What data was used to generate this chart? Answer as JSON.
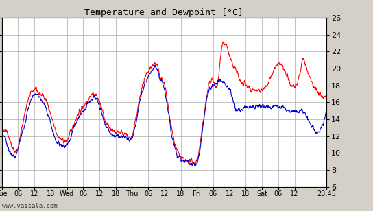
{
  "title": "Temperature and Dewpoint [°C]",
  "ylim": [
    6,
    26
  ],
  "yticks": [
    6,
    8,
    10,
    12,
    14,
    16,
    18,
    20,
    22,
    24,
    26
  ],
  "xlabel_labels": [
    "Tue",
    "06",
    "12",
    "18",
    "Wed",
    "06",
    "12",
    "18",
    "Thu",
    "06",
    "12",
    "18",
    "Fri",
    "06",
    "12",
    "18",
    "Sat",
    "06",
    "12",
    "23:45"
  ],
  "xtick_pos": [
    0,
    6,
    12,
    18,
    24,
    30,
    36,
    42,
    48,
    54,
    60,
    66,
    72,
    78,
    84,
    90,
    96,
    102,
    108,
    119.75
  ],
  "xlim": [
    0,
    119.75
  ],
  "watermark": "www.vaisala.com",
  "bg_color": "#d4d0c8",
  "plot_bg_color": "#ffffff",
  "grid_color": "#aaaaaa",
  "temp_color": "#ff0000",
  "dewpoint_color": "#0000cc",
  "line_width": 0.8,
  "temp_keypoints": [
    [
      0,
      12.0
    ],
    [
      2,
      12.5
    ],
    [
      3,
      11.5
    ],
    [
      4,
      10.5
    ],
    [
      5,
      10.2
    ],
    [
      6,
      10.8
    ],
    [
      8,
      14.0
    ],
    [
      10,
      16.5
    ],
    [
      12,
      17.5
    ],
    [
      14,
      17.0
    ],
    [
      16,
      16.5
    ],
    [
      18,
      14.5
    ],
    [
      20,
      12.5
    ],
    [
      22,
      11.5
    ],
    [
      24,
      11.5
    ],
    [
      26,
      13.0
    ],
    [
      28,
      14.5
    ],
    [
      30,
      15.5
    ],
    [
      32,
      16.5
    ],
    [
      34,
      17.0
    ],
    [
      36,
      16.0
    ],
    [
      38,
      14.0
    ],
    [
      40,
      13.0
    ],
    [
      42,
      12.5
    ],
    [
      44,
      12.5
    ],
    [
      46,
      12.0
    ],
    [
      48,
      12.0
    ],
    [
      50,
      15.0
    ],
    [
      52,
      18.0
    ],
    [
      54,
      19.5
    ],
    [
      56,
      20.5
    ],
    [
      57,
      20.5
    ],
    [
      58,
      19.5
    ],
    [
      60,
      18.0
    ],
    [
      62,
      14.0
    ],
    [
      64,
      11.0
    ],
    [
      66,
      9.5
    ],
    [
      68,
      9.0
    ],
    [
      70,
      9.0
    ],
    [
      71,
      8.8
    ],
    [
      72,
      9.2
    ],
    [
      74,
      13.0
    ],
    [
      76,
      17.5
    ],
    [
      78,
      18.5
    ],
    [
      80,
      19.0
    ],
    [
      81,
      22.5
    ],
    [
      82,
      23.0
    ],
    [
      83,
      22.5
    ],
    [
      84,
      21.5
    ],
    [
      85,
      20.5
    ],
    [
      86,
      20.0
    ],
    [
      88,
      18.5
    ],
    [
      90,
      18.0
    ],
    [
      92,
      17.5
    ],
    [
      94,
      17.5
    ],
    [
      96,
      17.5
    ],
    [
      98,
      18.0
    ],
    [
      100,
      19.5
    ],
    [
      102,
      20.5
    ],
    [
      104,
      20.0
    ],
    [
      106,
      18.5
    ],
    [
      108,
      18.0
    ],
    [
      110,
      19.5
    ],
    [
      111,
      21.0
    ],
    [
      112,
      20.5
    ],
    [
      113,
      19.5
    ],
    [
      115,
      18.0
    ],
    [
      117,
      17.0
    ],
    [
      119.75,
      16.5
    ]
  ],
  "dew_keypoints": [
    [
      0,
      11.5
    ],
    [
      2,
      11.0
    ],
    [
      3,
      10.0
    ],
    [
      4,
      9.8
    ],
    [
      5,
      9.5
    ],
    [
      6,
      10.5
    ],
    [
      8,
      13.0
    ],
    [
      10,
      15.5
    ],
    [
      12,
      17.0
    ],
    [
      14,
      16.5
    ],
    [
      16,
      15.5
    ],
    [
      18,
      13.5
    ],
    [
      20,
      11.5
    ],
    [
      22,
      11.0
    ],
    [
      24,
      11.0
    ],
    [
      26,
      12.5
    ],
    [
      28,
      14.0
    ],
    [
      30,
      15.0
    ],
    [
      32,
      16.0
    ],
    [
      34,
      16.5
    ],
    [
      36,
      15.5
    ],
    [
      38,
      13.5
    ],
    [
      40,
      12.5
    ],
    [
      42,
      12.0
    ],
    [
      44,
      12.0
    ],
    [
      46,
      11.8
    ],
    [
      48,
      11.8
    ],
    [
      50,
      14.5
    ],
    [
      52,
      17.5
    ],
    [
      54,
      19.0
    ],
    [
      56,
      20.0
    ],
    [
      57,
      20.0
    ],
    [
      58,
      19.0
    ],
    [
      60,
      17.5
    ],
    [
      62,
      13.5
    ],
    [
      64,
      10.5
    ],
    [
      66,
      9.2
    ],
    [
      68,
      9.0
    ],
    [
      70,
      8.8
    ],
    [
      71,
      8.6
    ],
    [
      72,
      8.8
    ],
    [
      74,
      12.5
    ],
    [
      76,
      17.0
    ],
    [
      78,
      18.0
    ],
    [
      80,
      18.5
    ],
    [
      81,
      18.5
    ],
    [
      82,
      18.5
    ],
    [
      83,
      18.0
    ],
    [
      84,
      17.5
    ],
    [
      85,
      16.5
    ],
    [
      86,
      15.5
    ],
    [
      88,
      15.0
    ],
    [
      90,
      15.5
    ],
    [
      92,
      15.5
    ],
    [
      94,
      15.5
    ],
    [
      96,
      15.5
    ],
    [
      98,
      15.5
    ],
    [
      100,
      15.5
    ],
    [
      102,
      15.5
    ],
    [
      104,
      15.5
    ],
    [
      106,
      15.0
    ],
    [
      108,
      15.0
    ],
    [
      110,
      15.0
    ],
    [
      111,
      15.0
    ],
    [
      112,
      14.5
    ],
    [
      113,
      14.0
    ],
    [
      114,
      13.5
    ],
    [
      115,
      13.0
    ],
    [
      116,
      12.5
    ],
    [
      117,
      12.5
    ],
    [
      119.75,
      15.0
    ]
  ]
}
